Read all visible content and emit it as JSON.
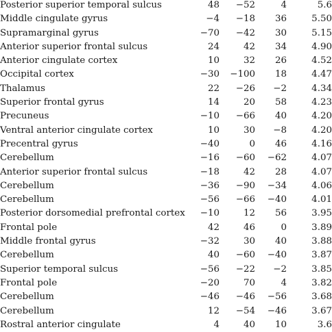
{
  "table": {
    "rows": [
      {
        "region": "Posterior superior temporal sulcus",
        "x": "48",
        "y": "−52",
        "z": "4",
        "t": "5.6"
      },
      {
        "region": "Middle cingulate gyrus",
        "x": "−4",
        "y": "−18",
        "z": "36",
        "t": "5.50"
      },
      {
        "region": "Supramarginal gyrus",
        "x": "−70",
        "y": "−42",
        "z": "30",
        "t": "5.15"
      },
      {
        "region": "Anterior superior frontal sulcus",
        "x": "24",
        "y": "42",
        "z": "34",
        "t": "4.90"
      },
      {
        "region": "Anterior cingulate cortex",
        "x": "10",
        "y": "32",
        "z": "26",
        "t": "4.52"
      },
      {
        "region": "Occipital cortex",
        "x": "−30",
        "y": "−100",
        "z": "18",
        "t": "4.47"
      },
      {
        "region": "Thalamus",
        "x": "22",
        "y": "−26",
        "z": "−2",
        "t": "4.34"
      },
      {
        "region": "Superior frontal gyrus",
        "x": "14",
        "y": "20",
        "z": "58",
        "t": "4.23"
      },
      {
        "region": "Precuneus",
        "x": "−10",
        "y": "−66",
        "z": "40",
        "t": "4.20"
      },
      {
        "region": "Ventral anterior cingulate cortex",
        "x": "10",
        "y": "30",
        "z": "−8",
        "t": "4.20"
      },
      {
        "region": "Precentral gyrus",
        "x": "−40",
        "y": "0",
        "z": "46",
        "t": "4.16"
      },
      {
        "region": "Cerebellum",
        "x": "−16",
        "y": "−60",
        "z": "−62",
        "t": "4.07"
      },
      {
        "region": "Anterior superior frontal sulcus",
        "x": "−18",
        "y": "42",
        "z": "28",
        "t": "4.07"
      },
      {
        "region": "Cerebellum",
        "x": "−36",
        "y": "−90",
        "z": "−34",
        "t": "4.06"
      },
      {
        "region": "Cerebellum",
        "x": "−56",
        "y": "−66",
        "z": "−40",
        "t": "4.01"
      },
      {
        "region": "Posterior dorsomedial prefrontal cortex",
        "x": "−10",
        "y": "12",
        "z": "56",
        "t": "3.95"
      },
      {
        "region": "Frontal pole",
        "x": "42",
        "y": "46",
        "z": "0",
        "t": "3.89"
      },
      {
        "region": "Middle frontal gyrus",
        "x": "−32",
        "y": "30",
        "z": "40",
        "t": "3.88"
      },
      {
        "region": "Cerebellum",
        "x": "40",
        "y": "−60",
        "z": "−40",
        "t": "3.87"
      },
      {
        "region": "Superior temporal sulcus",
        "x": "−56",
        "y": "−22",
        "z": "−2",
        "t": "3.85"
      },
      {
        "region": "Frontal pole",
        "x": "−20",
        "y": "70",
        "z": "4",
        "t": "3.82"
      },
      {
        "region": "Cerebellum",
        "x": "−46",
        "y": "−46",
        "z": "−56",
        "t": "3.68"
      },
      {
        "region": "Cerebellum",
        "x": "12",
        "y": "−54",
        "z": "−46",
        "t": "3.67"
      },
      {
        "region": "Rostral anterior cingulate",
        "x": "4",
        "y": "40",
        "z": "10",
        "t": "3.6"
      }
    ]
  }
}
